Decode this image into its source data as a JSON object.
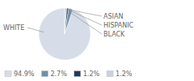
{
  "chart_data": {
    "type": "pie",
    "categories": [
      "WHITE",
      "ASIAN",
      "HISPANIC",
      "BLACK"
    ],
    "values": [
      94.9,
      2.7,
      1.2,
      1.2
    ],
    "value_labels": [
      "94.9%",
      "2.7%",
      "1.2%",
      "1.2%"
    ],
    "colors": [
      "#d6dde8",
      "#6e8faa",
      "#1f3a5f",
      "#c8d3df"
    ],
    "legend": "bottom"
  }
}
